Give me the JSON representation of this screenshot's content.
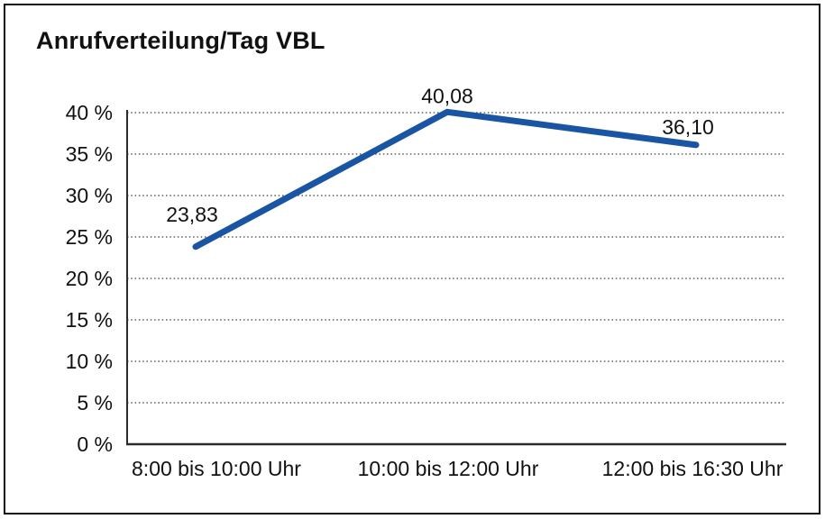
{
  "chart_data": {
    "type": "line",
    "title": "Anrufverteilung/Tag VBL",
    "categories": [
      "8:00 bis 10:00 Uhr",
      "10:00 bis 12:00 Uhr",
      "12:00 bis 16:30 Uhr"
    ],
    "values": [
      23.83,
      40.08,
      36.1
    ],
    "point_labels": [
      "23,83",
      "40,08",
      "36,10"
    ],
    "y_ticks": {
      "values": [
        0,
        5,
        10,
        15,
        20,
        25,
        30,
        35,
        40
      ],
      "labels": [
        "0 %",
        "5 %",
        "10 %",
        "15 %",
        "20 %",
        "25 %",
        "30 %",
        "35 %",
        "40 %"
      ]
    },
    "ylim": [
      0,
      40
    ],
    "xlabel": "",
    "ylabel": "",
    "legend": "none",
    "grid": "horizontal dotted",
    "colors": {
      "line": "#1A55A3",
      "text": "#111111",
      "axis": "#2B2B2B",
      "grid": "#3C3C3C",
      "border": "#111111",
      "background": "#FFFFFF"
    }
  }
}
